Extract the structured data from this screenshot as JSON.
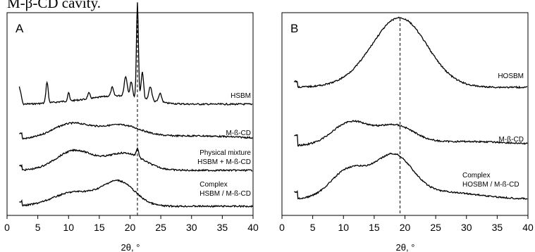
{
  "top_caption": "M-β-CD cavity.",
  "chart_data": [
    {
      "type": "line",
      "panel_label": "A",
      "xlabel": "2θ, °",
      "xlim": [
        0,
        40
      ],
      "x_ticks": [
        "0",
        "5",
        "10",
        "15",
        "20",
        "25",
        "30",
        "35",
        "40"
      ],
      "y_axis_visible": false,
      "reference_line": {
        "x": 21.2,
        "style": "dashed"
      },
      "series": [
        {
          "name": "HSBM",
          "label_lines": [
            "HSBM"
          ],
          "peaks": [
            6.5,
            10,
            13.3,
            17.1,
            19.3,
            20.2,
            21.2,
            22.0,
            23.3,
            24.9
          ]
        },
        {
          "name": "M-ß-CD",
          "label_lines": [
            "M-ß-CD"
          ],
          "broad_maxima": [
            10.5,
            18
          ]
        },
        {
          "name": "Physical mixture HSBM + M-ß-CD",
          "label_lines": [
            "Physical mixture",
            "HSBM + M-ß-CD"
          ],
          "broad_maxima": [
            11,
            19.5
          ],
          "peaks": [
            21.2
          ]
        },
        {
          "name": "Complex HSBM / M-ß-CD",
          "label_lines": [
            "Complex",
            "HSBM / M-ß-CD"
          ],
          "broad_maxima": [
            11,
            18.2
          ]
        }
      ]
    },
    {
      "type": "line",
      "panel_label": "B",
      "xlabel": "2θ, °",
      "xlim": [
        0,
        40
      ],
      "x_ticks": [
        "0",
        "5",
        "10",
        "15",
        "20",
        "25",
        "30",
        "35",
        "40"
      ],
      "y_axis_visible": false,
      "reference_line": {
        "x": 19.2,
        "style": "dashed"
      },
      "series": [
        {
          "name": "HOSBM",
          "label_lines": [
            "HOSBM"
          ],
          "broad_maxima": [
            19.2
          ]
        },
        {
          "name": "M-ß-CD",
          "label_lines": [
            "M-ß-CD"
          ],
          "broad_maxima": [
            11.2,
            18.5
          ]
        },
        {
          "name": "Complex HOSBM / M-ß-CD",
          "label_lines": [
            "Complex",
            "HOSBM / M-ß-CD"
          ],
          "broad_maxima": [
            11,
            18.2
          ]
        }
      ]
    }
  ]
}
